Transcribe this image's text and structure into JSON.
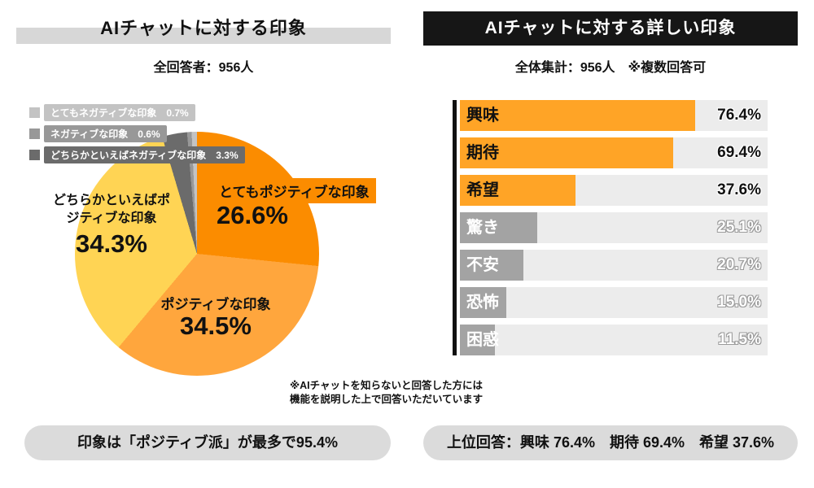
{
  "left": {
    "title": "AIチャットに対する印象",
    "subtitle": "全回答者：956人",
    "note": [
      "※AIチャットを知らないと回答した方には",
      "機能を説明した上で回答いただいています"
    ],
    "summary": "印象は「ポジティブ派」が最多で95.4%"
  },
  "right": {
    "title": "AIチャットに対する詳しい印象",
    "subtitle": "全体集計：956人　※複数回答可",
    "summary": "上位回答：興味 76.4%　期待 69.4%　希望 37.6%"
  },
  "chart_data": [
    {
      "type": "pie",
      "title": "AIチャットに対する印象",
      "subtitle": "全回答者：956人",
      "start": "top",
      "direction": "clockwise",
      "slices": [
        {
          "label": "とてもポジティブな印象",
          "value": 26.6,
          "color": "#FB8C00"
        },
        {
          "label": "ポジティブな印象",
          "value": 34.5,
          "color": "#FFA63D"
        },
        {
          "label": "どちらかといえばポジティブな印象",
          "value": 34.3,
          "color": "#FFD454"
        },
        {
          "label": "どちらかといえばネガティブな印象",
          "value": 3.3,
          "color": "#6B6B6B"
        },
        {
          "label": "ネガティブな印象",
          "value": 0.6,
          "color": "#989898"
        },
        {
          "label": "とてもネガティブな印象",
          "value": 0.7,
          "color": "#C3C3C3"
        }
      ],
      "legend_order": [
        5,
        4,
        3
      ]
    },
    {
      "type": "bar",
      "orientation": "horizontal",
      "title": "AIチャットに対する詳しい印象",
      "subtitle": "全体集計：956人　※複数回答可",
      "categories": [
        "興味",
        "期待",
        "希望",
        "驚き",
        "不安",
        "恐怖",
        "困惑"
      ],
      "values": [
        76.4,
        69.4,
        37.6,
        25.1,
        20.7,
        15.0,
        11.5
      ],
      "emphasized": [
        true,
        true,
        true,
        false,
        false,
        false,
        false
      ],
      "emphasis_color": "#FFA426",
      "muted_color": "#A3A3A3",
      "track_color": "#ECECEC",
      "xlim": [
        0,
        100
      ],
      "legend_position": "none",
      "grid": false
    }
  ]
}
